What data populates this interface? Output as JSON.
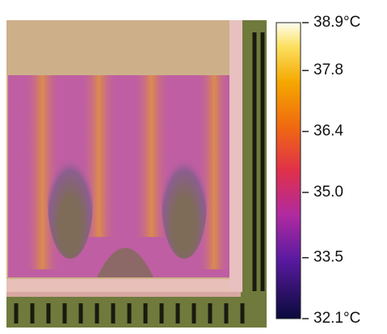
{
  "colorbar": {
    "lim": [
      32.1,
      38.9
    ],
    "ticks": [
      {
        "value": 38.9,
        "label": "38.9°C"
      },
      37.8,
      36.4,
      {
        "value": 35,
        "label": "35.0"
      },
      33.5,
      {
        "value": 32.1,
        "label": "32.1°C"
      }
    ]
  }
}
